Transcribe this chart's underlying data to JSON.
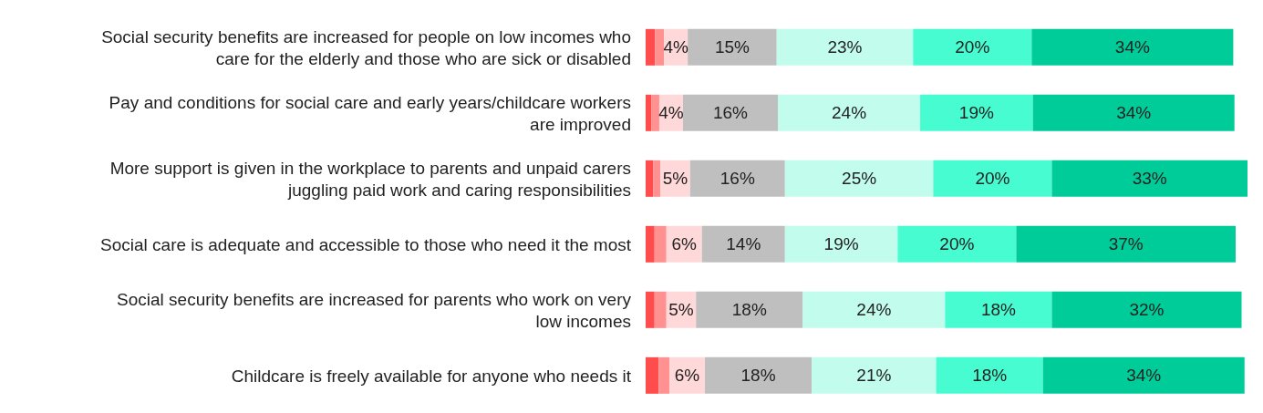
{
  "chart_data": {
    "type": "bar",
    "orientation": "horizontal",
    "stacked": true,
    "categories": [
      "Social security benefits are increased for people on low incomes who care for the elderly and those who are sick or disabled",
      "Pay and conditions for social care and early years/childcare workers are improved",
      "More support is given in the workplace to parents and unpaid carers juggling paid work and caring responsibilities",
      "Social care is adequate and accessible to those who need it the most",
      "Social security benefits are increased for parents who work on very low incomes",
      "Childcare is freely available for anyone who needs it"
    ],
    "series": [
      {
        "color": "#ff4d4d",
        "values": [
          1.6,
          1,
          1.3,
          1.5,
          1.5,
          2.2
        ]
      },
      {
        "color": "#ff9191",
        "values": [
          1.5,
          1.3,
          1.2,
          2,
          2,
          1.8
        ]
      },
      {
        "color": "#ffd9d9",
        "values": [
          4,
          4,
          5,
          6,
          5,
          6
        ],
        "value_labels": [
          "4%",
          "4%",
          "5%",
          "6%",
          "5%",
          "6%"
        ]
      },
      {
        "color": "#bfbfbf",
        "values": [
          15,
          16,
          16,
          14,
          18,
          18
        ],
        "value_labels": [
          "15%",
          "16%",
          "16%",
          "14%",
          "18%",
          "18%"
        ]
      },
      {
        "color": "#c2fcec",
        "values": [
          23,
          24,
          25,
          19,
          24,
          21
        ],
        "value_labels": [
          "23%",
          "24%",
          "25%",
          "19%",
          "24%",
          "21%"
        ]
      },
      {
        "color": "#47fcd0",
        "values": [
          20,
          19,
          20,
          20,
          18,
          18
        ],
        "value_labels": [
          "20%",
          "19%",
          "20%",
          "20%",
          "18%",
          "18%"
        ]
      },
      {
        "color": "#00cc99",
        "values": [
          34,
          34,
          33,
          37,
          32,
          34
        ],
        "value_labels": [
          "34%",
          "34%",
          "33%",
          "37%",
          "32%",
          "34%"
        ]
      }
    ],
    "legend": false,
    "grid": false
  }
}
